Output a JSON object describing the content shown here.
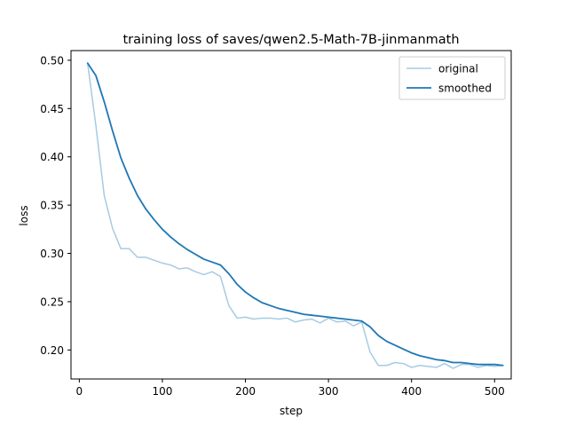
{
  "chart_data": {
    "type": "line",
    "title": "training loss of saves/qwen2.5-Math-7B-jinmanmath",
    "xlabel": "step",
    "ylabel": "loss",
    "xlim": [
      -10,
      520
    ],
    "ylim": [
      0.17,
      0.51
    ],
    "x_ticks": [
      0,
      100,
      200,
      300,
      400,
      500
    ],
    "y_ticks": [
      0.2,
      0.25,
      0.3,
      0.35,
      0.4,
      0.45,
      0.5
    ],
    "x_tick_labels": [
      "0",
      "100",
      "200",
      "300",
      "400",
      "500"
    ],
    "y_tick_labels": [
      "0.20",
      "0.25",
      "0.30",
      "0.35",
      "0.40",
      "0.45",
      "0.50"
    ],
    "grid": false,
    "legend_position": "top-right",
    "x": [
      10,
      20,
      30,
      40,
      50,
      60,
      70,
      80,
      90,
      100,
      110,
      120,
      130,
      140,
      150,
      160,
      170,
      180,
      190,
      200,
      210,
      220,
      230,
      240,
      250,
      260,
      270,
      280,
      290,
      300,
      310,
      320,
      330,
      340,
      350,
      360,
      370,
      380,
      390,
      400,
      410,
      420,
      430,
      440,
      450,
      460,
      470,
      480,
      490,
      500,
      510
    ],
    "series": [
      {
        "name": "original",
        "color": "#a6cbe3",
        "values": [
          0.497,
          0.432,
          0.36,
          0.326,
          0.305,
          0.305,
          0.296,
          0.296,
          0.293,
          0.29,
          0.288,
          0.284,
          0.285,
          0.281,
          0.278,
          0.281,
          0.276,
          0.246,
          0.233,
          0.234,
          0.232,
          0.233,
          0.233,
          0.232,
          0.233,
          0.229,
          0.231,
          0.232,
          0.228,
          0.233,
          0.229,
          0.23,
          0.225,
          0.229,
          0.198,
          0.184,
          0.184,
          0.187,
          0.186,
          0.182,
          0.184,
          0.183,
          0.182,
          0.186,
          0.181,
          0.185,
          0.185,
          0.182,
          0.184,
          0.183,
          0.184
        ]
      },
      {
        "name": "smoothed",
        "color": "#1f77b4",
        "values": [
          0.497,
          0.484,
          0.457,
          0.427,
          0.399,
          0.378,
          0.36,
          0.346,
          0.335,
          0.325,
          0.317,
          0.31,
          0.304,
          0.299,
          0.294,
          0.291,
          0.288,
          0.279,
          0.268,
          0.26,
          0.254,
          0.249,
          0.246,
          0.243,
          0.241,
          0.239,
          0.237,
          0.236,
          0.235,
          0.234,
          0.233,
          0.232,
          0.231,
          0.23,
          0.224,
          0.215,
          0.209,
          0.205,
          0.201,
          0.197,
          0.194,
          0.192,
          0.19,
          0.189,
          0.187,
          0.187,
          0.186,
          0.185,
          0.185,
          0.185,
          0.184
        ]
      }
    ]
  }
}
